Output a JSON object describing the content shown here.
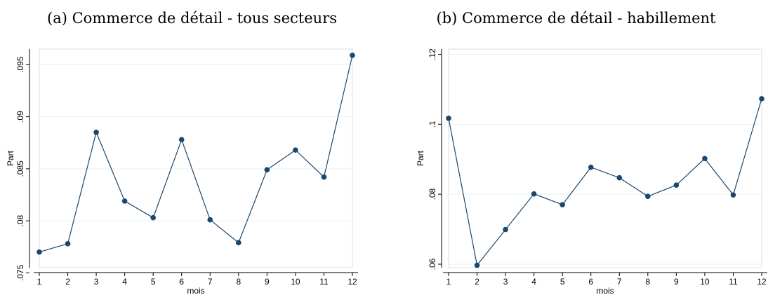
{
  "chart_data": [
    {
      "type": "line",
      "title": "(a) Commerce de détail - tous secteurs",
      "xlabel": "mois",
      "ylabel": "Part",
      "x": [
        1,
        2,
        3,
        4,
        5,
        6,
        7,
        8,
        9,
        10,
        11,
        12
      ],
      "x_tick_labels": [
        "1",
        "2",
        "3",
        "4",
        "5",
        "6",
        "7",
        "8",
        "9",
        "10",
        "11",
        "12"
      ],
      "series": [
        {
          "values": [
            0.077,
            0.0778,
            0.0885,
            0.0819,
            0.0803,
            0.0878,
            0.0801,
            0.0779,
            0.0849,
            0.0868,
            0.0842,
            0.0959
          ]
        }
      ],
      "xlim": [
        1,
        12
      ],
      "ylim": [
        0.0755,
        0.0965
      ],
      "y_ticks": [
        0.075,
        0.08,
        0.085,
        0.09,
        0.095
      ],
      "y_tick_labels": [
        ".075",
        ".08",
        ".085",
        ".09",
        ".095"
      ],
      "grid": true,
      "line_color": "#1a476f"
    },
    {
      "type": "line",
      "title": "(b) Commerce de détail - habillement",
      "xlabel": "mois",
      "ylabel": "Part",
      "x": [
        1,
        2,
        3,
        4,
        5,
        6,
        7,
        8,
        9,
        10,
        11,
        12
      ],
      "x_tick_labels": [
        "1",
        "2",
        "3",
        "4",
        "5",
        "6",
        "7",
        "8",
        "9",
        "10",
        "11",
        "12"
      ],
      "series": [
        {
          "values": [
            0.1017,
            0.0597,
            0.0699,
            0.0801,
            0.077,
            0.0877,
            0.0847,
            0.0794,
            0.0826,
            0.0902,
            0.0798,
            0.1073
          ]
        }
      ],
      "xlim": [
        1,
        12
      ],
      "ylim": [
        0.059,
        0.1215
      ],
      "y_ticks": [
        0.06,
        0.08,
        0.1,
        0.12
      ],
      "y_tick_labels": [
        ".06",
        ".08",
        ".1",
        ".12"
      ],
      "grid": true,
      "line_color": "#1a476f"
    }
  ]
}
